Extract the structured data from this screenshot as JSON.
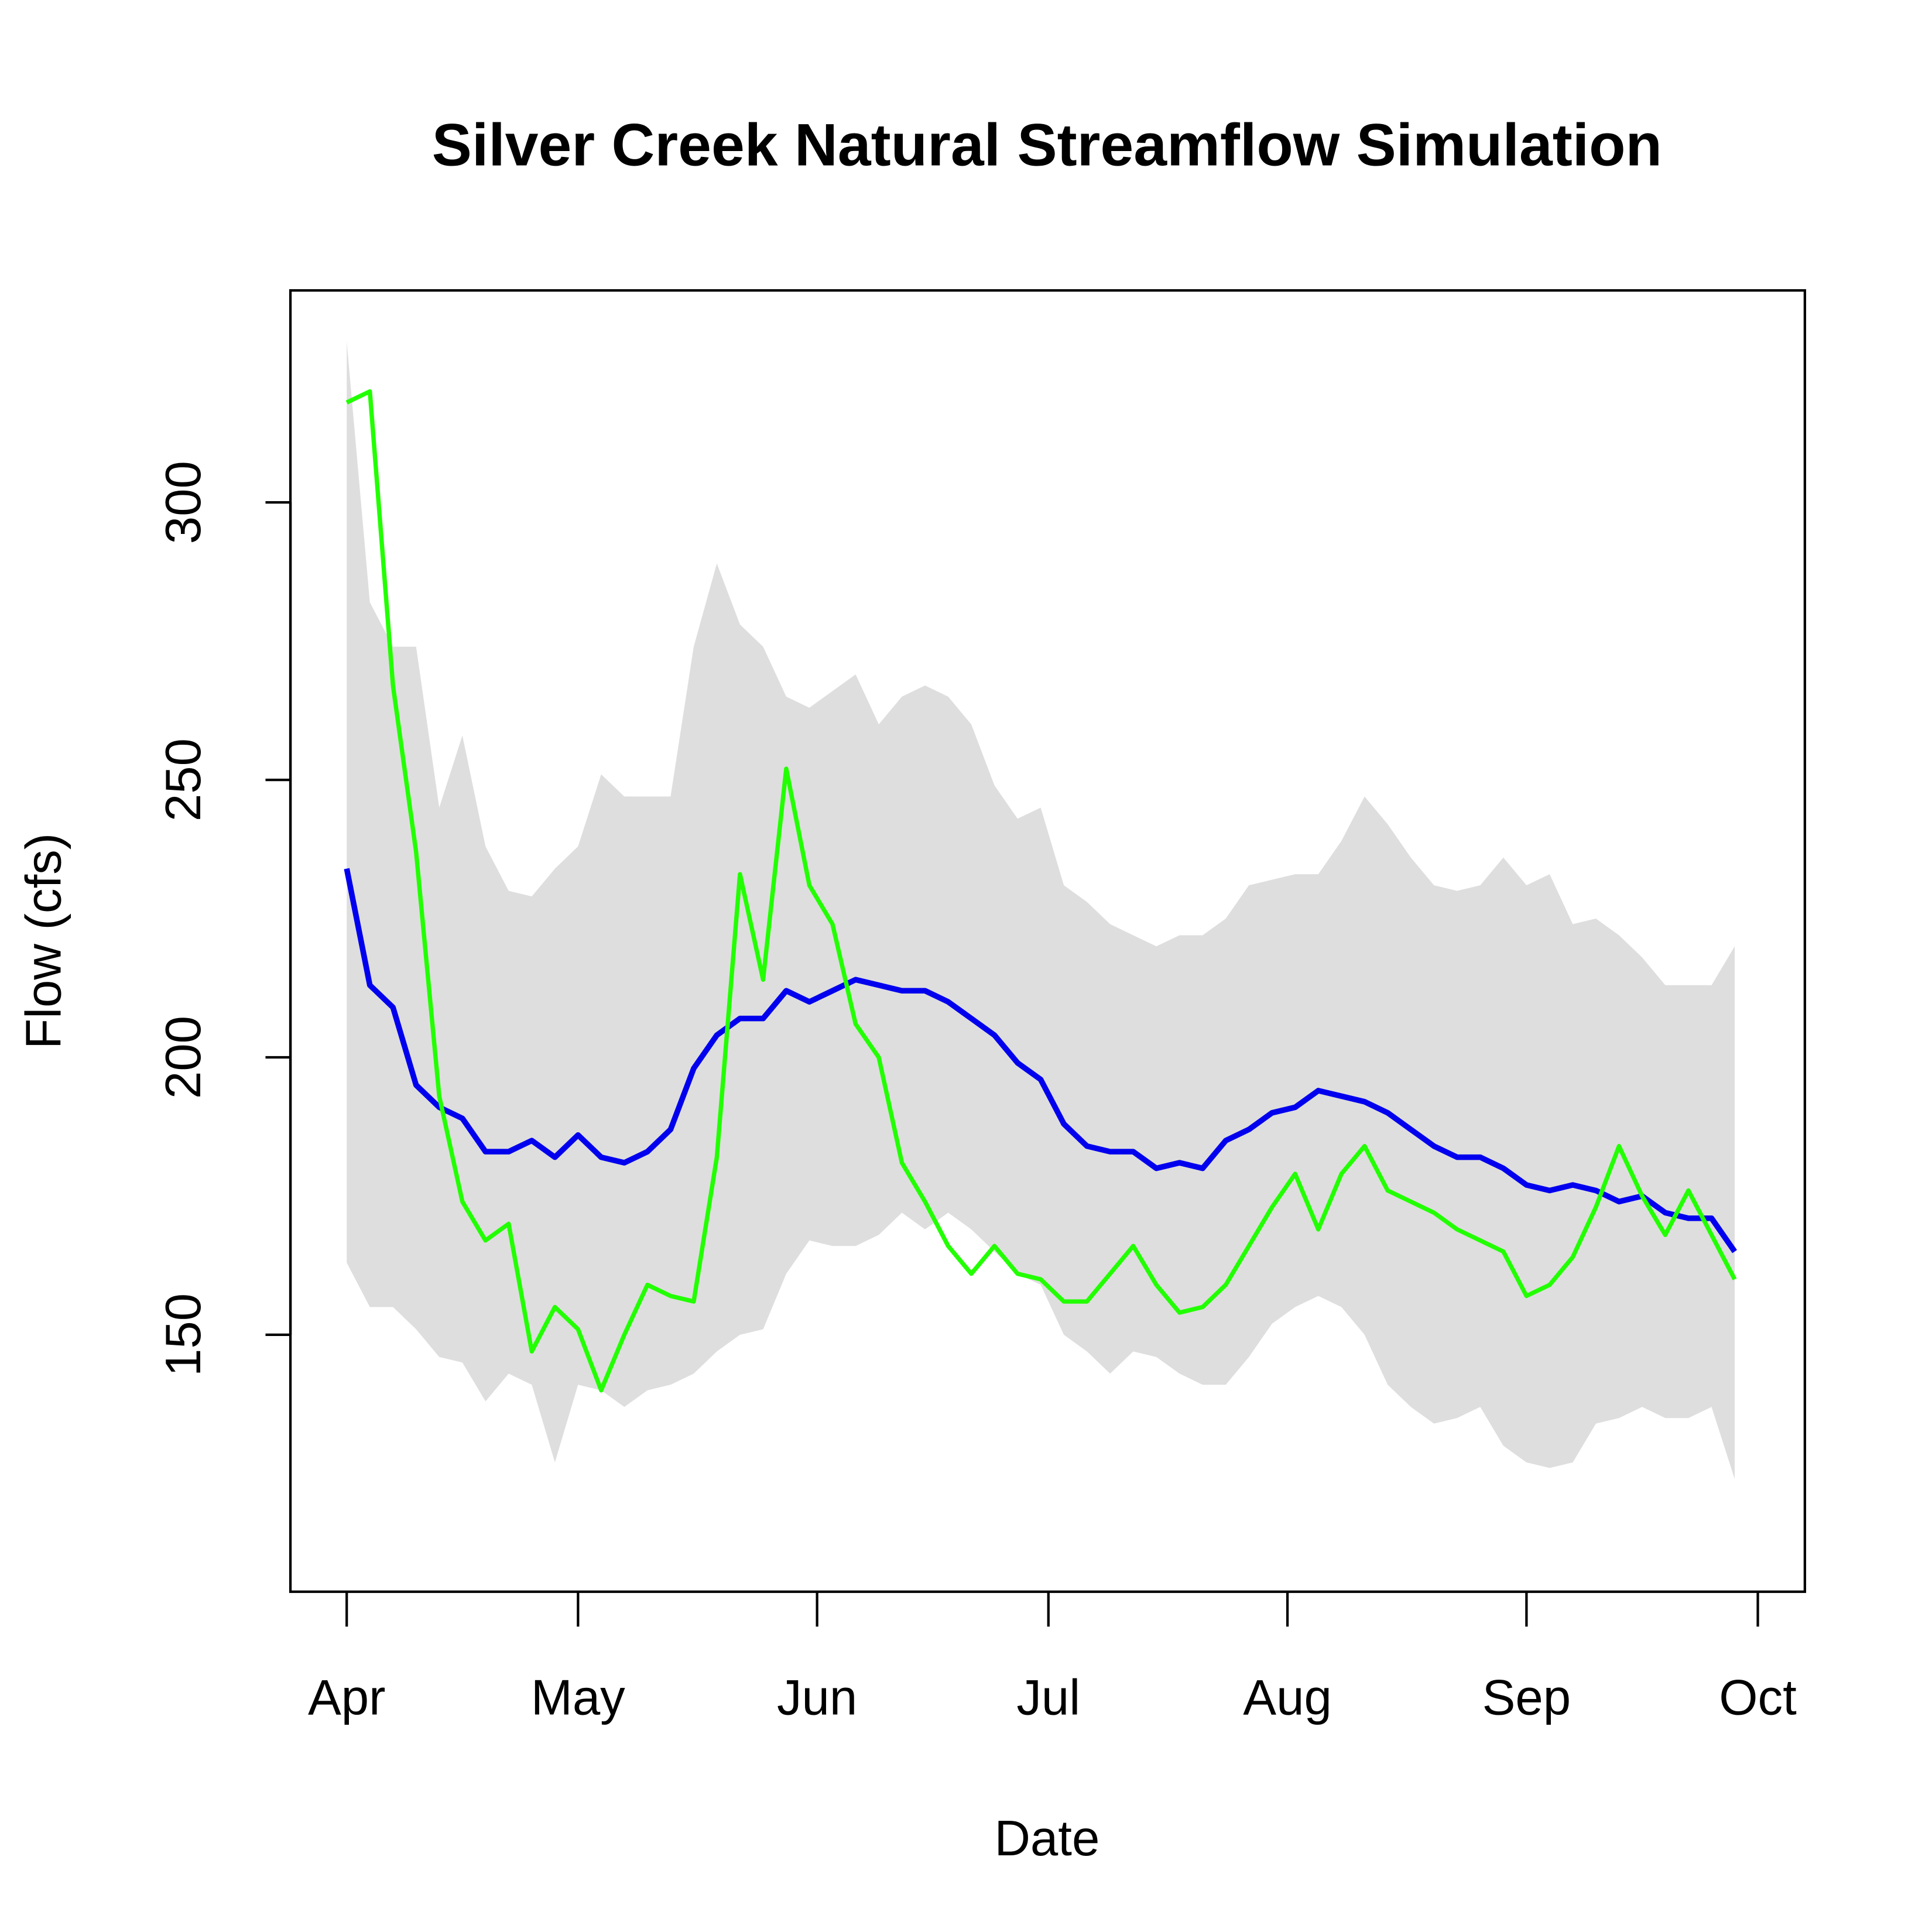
{
  "chart_data": {
    "type": "line",
    "title": "Silver Creek Natural Streamflow Simulation",
    "x_label": "Date",
    "y_label": "Flow (cfs)",
    "x": [
      0,
      3,
      6,
      9,
      12,
      15,
      18,
      21,
      24,
      27,
      30,
      33,
      36,
      39,
      42,
      45,
      48,
      51,
      54,
      57,
      60,
      63,
      66,
      69,
      72,
      75,
      78,
      81,
      84,
      87,
      90,
      93,
      96,
      99,
      102,
      105,
      108,
      111,
      114,
      117,
      120,
      123,
      126,
      129,
      132,
      135,
      138,
      141,
      144,
      147,
      150,
      153,
      156,
      159,
      162,
      165,
      168,
      171,
      174,
      177,
      180
    ],
    "xlim": [
      -7.3,
      189.1
    ],
    "xticks": [
      {
        "value": 0,
        "label": "Apr"
      },
      {
        "value": 30,
        "label": "May"
      },
      {
        "value": 61,
        "label": "Jun"
      },
      {
        "value": 91,
        "label": "Jul"
      },
      {
        "value": 122,
        "label": "Aug"
      },
      {
        "value": 153,
        "label": "Sep"
      },
      {
        "value": 183,
        "label": "Oct"
      }
    ],
    "ylim": [
      103.7,
      338.2
    ],
    "yticks": [
      150,
      200,
      250,
      300
    ],
    "band": {
      "color": "#dedede",
      "upper": [
        329,
        282,
        274,
        274,
        245,
        258,
        238,
        230,
        229,
        234,
        238,
        251,
        247,
        247,
        247,
        274,
        289,
        278,
        274,
        265,
        263,
        266,
        269,
        260,
        265,
        267,
        265,
        260,
        249,
        243,
        245,
        231,
        228,
        224,
        222,
        220,
        222,
        222,
        225,
        231,
        232,
        233,
        233,
        239,
        247,
        242,
        236,
        231,
        230,
        231,
        236,
        231,
        233,
        224,
        225,
        222,
        218,
        213,
        213,
        213,
        220
      ],
      "lower": [
        163,
        155,
        155,
        151,
        146,
        145,
        138,
        143,
        141,
        127,
        141,
        140,
        137,
        140,
        141,
        143,
        147,
        150,
        151,
        161,
        167,
        166,
        166,
        168,
        172,
        169,
        172,
        169,
        165,
        161,
        159,
        150,
        147,
        143,
        147,
        146,
        143,
        141,
        141,
        146,
        152,
        155,
        157,
        155,
        150,
        141,
        137,
        134,
        135,
        137,
        130,
        127,
        126,
        127,
        134,
        135,
        137,
        135,
        135,
        137,
        124
      ]
    },
    "series": [
      {
        "color": "#0000ee",
        "width": 4.5,
        "values": [
          234,
          213,
          209,
          195,
          191,
          189,
          183,
          183,
          185,
          182,
          186,
          182,
          181,
          183,
          187,
          198,
          204,
          207,
          207,
          212,
          210,
          212,
          214,
          213,
          212,
          212,
          210,
          207,
          204,
          199,
          196,
          188,
          184,
          183,
          183,
          180,
          181,
          180,
          185,
          187,
          190,
          191,
          194,
          193,
          192,
          190,
          187,
          184,
          182,
          182,
          180,
          177,
          176,
          177,
          176,
          174,
          175,
          172,
          171,
          171,
          165
        ]
      },
      {
        "color": "#22ff00",
        "width": 3.5,
        "values": [
          318,
          320,
          267,
          237,
          193,
          174,
          167,
          170,
          147,
          155,
          151,
          140,
          150,
          159,
          157,
          156,
          182,
          233,
          214,
          252,
          231,
          224,
          206,
          200,
          181,
          174,
          166,
          161,
          166,
          161,
          160,
          156,
          156,
          161,
          166,
          159,
          154,
          155,
          159,
          166,
          173,
          179,
          169,
          179,
          184,
          176,
          174,
          172,
          169,
          167,
          165,
          157,
          159,
          164,
          173,
          184,
          175,
          168,
          176,
          168,
          160
        ]
      }
    ]
  }
}
